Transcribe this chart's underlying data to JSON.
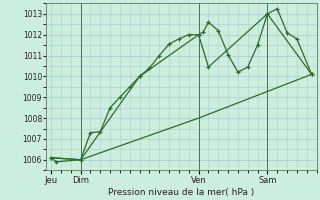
{
  "background_color": "#cceedd",
  "grid_color": "#aacccc",
  "line_color": "#2d6a2d",
  "xlabel": "Pression niveau de la mer( hPa )",
  "ylim": [
    1005.5,
    1013.5
  ],
  "yticks": [
    1006,
    1007,
    1008,
    1009,
    1010,
    1011,
    1012,
    1013
  ],
  "day_labels": [
    "Jeu",
    "Dim",
    "Ven",
    "Sam"
  ],
  "day_positions": [
    0,
    3,
    15,
    22
  ],
  "xlim": [
    -0.5,
    27
  ],
  "series1_x": [
    0,
    0.5,
    3,
    4,
    5,
    6,
    7,
    8,
    9,
    10,
    11,
    12,
    13,
    14,
    15,
    15.5,
    16,
    17,
    18,
    19,
    20,
    21,
    22,
    23,
    24,
    25,
    26.5
  ],
  "series1_y": [
    1006.1,
    1005.9,
    1006.0,
    1007.3,
    1007.35,
    1008.5,
    1009.0,
    1009.5,
    1010.0,
    1010.4,
    1011.0,
    1011.55,
    1011.8,
    1012.0,
    1012.0,
    1012.15,
    1012.6,
    1012.2,
    1011.05,
    1010.2,
    1010.45,
    1011.5,
    1013.0,
    1013.25,
    1012.1,
    1011.8,
    1010.1
  ],
  "series2_x": [
    0,
    3,
    15,
    26.5
  ],
  "series2_y": [
    1006.1,
    1006.0,
    1008.0,
    1010.1
  ],
  "series3_x": [
    0,
    3,
    9,
    15,
    16,
    22,
    26.5
  ],
  "series3_y": [
    1006.1,
    1006.0,
    1010.0,
    1012.0,
    1010.45,
    1013.0,
    1010.1
  ],
  "vline_positions": [
    3,
    15,
    22
  ],
  "vline_color": "#336633"
}
